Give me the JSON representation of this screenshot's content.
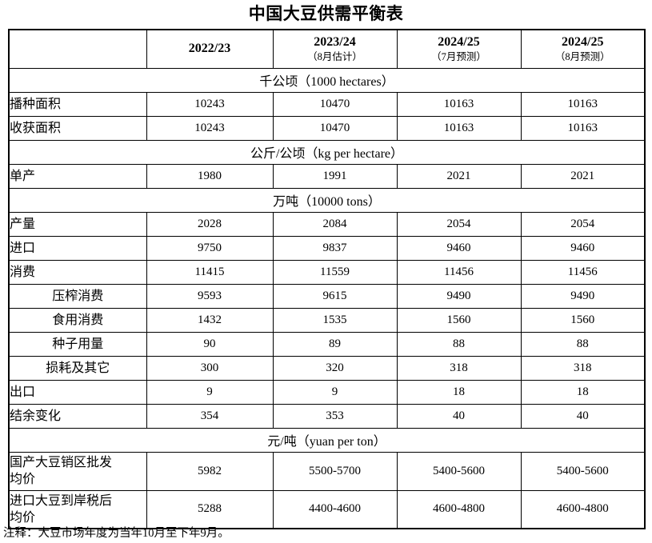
{
  "title": "中国大豆供需平衡表",
  "table": {
    "col_headers": [
      {
        "year": "",
        "note": ""
      },
      {
        "year": "2022/23",
        "note": ""
      },
      {
        "year": "2023/24",
        "note": "（8月估计）"
      },
      {
        "year": "2024/25",
        "note": "（7月预测）"
      },
      {
        "year": "2024/25",
        "note": "（8月预测）"
      }
    ],
    "rows": [
      {
        "type": "section",
        "label": "千公顷（1000 hectares）"
      },
      {
        "type": "data",
        "label": "播种面积",
        "indent": false,
        "values": [
          "10243",
          "10470",
          "10163",
          "10163"
        ]
      },
      {
        "type": "data",
        "label": "收获面积",
        "indent": false,
        "values": [
          "10243",
          "10470",
          "10163",
          "10163"
        ]
      },
      {
        "type": "section",
        "label": "公斤/公顷（kg per hectare）"
      },
      {
        "type": "data",
        "label": "单产",
        "indent": false,
        "values": [
          "1980",
          "1991",
          "2021",
          "2021"
        ]
      },
      {
        "type": "section",
        "label": "万吨（10000 tons）"
      },
      {
        "type": "data",
        "label": "产量",
        "indent": false,
        "values": [
          "2028",
          "2084",
          "2054",
          "2054"
        ]
      },
      {
        "type": "data",
        "label": "进口",
        "indent": false,
        "values": [
          "9750",
          "9837",
          "9460",
          "9460"
        ]
      },
      {
        "type": "data",
        "label": "消费",
        "indent": false,
        "values": [
          "11415",
          "11559",
          "11456",
          "11456"
        ]
      },
      {
        "type": "data",
        "label": "压榨消费",
        "indent": true,
        "values": [
          "9593",
          "9615",
          "9490",
          "9490"
        ]
      },
      {
        "type": "data",
        "label": "食用消费",
        "indent": true,
        "values": [
          "1432",
          "1535",
          "1560",
          "1560"
        ]
      },
      {
        "type": "data",
        "label": "种子用量",
        "indent": true,
        "values": [
          "90",
          "89",
          "88",
          "88"
        ]
      },
      {
        "type": "data",
        "label": "损耗及其它",
        "indent": true,
        "values": [
          "300",
          "320",
          "318",
          "318"
        ]
      },
      {
        "type": "data",
        "label": "出口",
        "indent": false,
        "values": [
          "9",
          "9",
          "18",
          "18"
        ]
      },
      {
        "type": "data",
        "label": "结余变化",
        "indent": false,
        "values": [
          "354",
          "353",
          "40",
          "40"
        ]
      },
      {
        "type": "section",
        "label": "元/吨（yuan per ton）"
      },
      {
        "type": "data",
        "label": "国产大豆销区批发\n均价",
        "indent": false,
        "values": [
          "5982",
          "5500-5700",
          "5400-5600",
          "5400-5600"
        ]
      },
      {
        "type": "data",
        "label": "进口大豆到岸税后\n均价",
        "indent": false,
        "values": [
          "5288",
          "4400-4600",
          "4600-4800",
          "4600-4800"
        ]
      }
    ]
  },
  "footnote": "注释：大豆市场年度为当年10月至下年9月。"
}
